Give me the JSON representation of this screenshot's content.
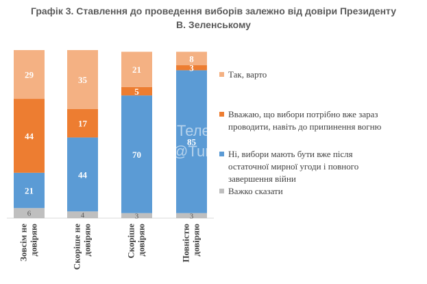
{
  "title": {
    "line1": "Графік 3. Ставлення до проведення виборів залежно від довіри Президенту",
    "line2": "В. Зеленському"
  },
  "watermark": {
    "line1": "Теле",
    "line2": "@Tur"
  },
  "chart_data": {
    "type": "bar",
    "stacked": true,
    "categories": [
      "Зовсім не довіряю",
      "Скоріше не довіряю",
      "Скоріше довіряю",
      "Повністю довіряю"
    ],
    "category_lines": [
      [
        "Зовсім не",
        "довіряю"
      ],
      [
        "Скоріше не",
        "довіряю"
      ],
      [
        "Скоріше",
        "довіряю"
      ],
      [
        "Повністю",
        "довіряю"
      ]
    ],
    "series": [
      {
        "name": "Важко сказати",
        "values": [
          6,
          4,
          3,
          3
        ],
        "color": "#bfbfbf"
      },
      {
        "name": "Ні, вибори мають бути вже після остаточної мирної угоди і повного завершення війни",
        "values": [
          21,
          44,
          70,
          85
        ],
        "color": "#5b9bd5"
      },
      {
        "name": "Вважаю, що вибори потрібно вже зараз проводити, навіть до припинення вогню",
        "values": [
          44,
          17,
          5,
          3
        ],
        "color": "#ed7d31"
      },
      {
        "name": "Так, варто",
        "values": [
          29,
          35,
          21,
          8
        ],
        "color": "#f4b183"
      }
    ],
    "legend": {
      "position": "right",
      "order": [
        3,
        2,
        1,
        0
      ],
      "lines": [
        [
          "Так, варто"
        ],
        [
          "Вважаю, що вибори потрібно вже зараз",
          "проводити, навіть до припинення вогню"
        ],
        [
          "Ні, вибори мають бути вже після",
          "остаточної мирної угоди і повного",
          "завершення війни"
        ],
        [
          "Важко сказати"
        ]
      ]
    },
    "ylim": [
      0,
      100
    ],
    "grid": false
  }
}
